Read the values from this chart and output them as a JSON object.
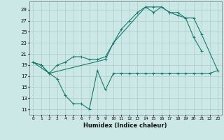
{
  "xlabel": "Humidex (Indice chaleur)",
  "background_color": "#cce8e6",
  "grid_color": "#aaccca",
  "line_color": "#1a7a6e",
  "x_ticks": [
    0,
    1,
    2,
    3,
    4,
    5,
    6,
    7,
    8,
    9,
    10,
    11,
    12,
    13,
    14,
    15,
    16,
    17,
    18,
    19,
    20,
    21,
    22,
    23
  ],
  "y_ticks": [
    11,
    13,
    15,
    17,
    19,
    21,
    23,
    25,
    27,
    29
  ],
  "ylim": [
    10.0,
    30.5
  ],
  "xlim": [
    -0.5,
    23.5
  ],
  "series1_x": [
    0,
    1,
    2,
    3,
    4,
    5,
    6,
    7,
    8,
    9,
    10,
    11,
    12,
    13,
    14,
    15,
    16,
    17,
    18,
    19,
    20,
    21,
    22,
    23
  ],
  "series1_y": [
    19.5,
    19.0,
    17.5,
    16.5,
    13.5,
    12.0,
    12.0,
    11.0,
    18.0,
    14.5,
    17.5,
    17.5,
    17.5,
    17.5,
    17.5,
    17.5,
    17.5,
    17.5,
    17.5,
    17.5,
    17.5,
    17.5,
    17.5,
    18.0
  ],
  "series2_x": [
    0,
    1,
    2,
    3,
    4,
    5,
    6,
    7,
    8,
    9,
    10,
    11,
    12,
    13,
    14,
    15,
    16,
    17,
    18,
    19,
    20,
    21
  ],
  "series2_y": [
    19.5,
    19.0,
    17.5,
    19.0,
    19.5,
    20.5,
    20.5,
    20.0,
    20.0,
    20.5,
    23.0,
    25.5,
    27.0,
    28.5,
    29.5,
    28.5,
    29.5,
    28.5,
    28.5,
    27.5,
    24.0,
    21.5
  ],
  "series3_x": [
    0,
    2,
    9,
    10,
    14,
    15,
    16,
    17,
    18,
    19,
    20,
    21,
    23
  ],
  "series3_y": [
    19.5,
    17.5,
    20.0,
    23.0,
    29.5,
    29.5,
    29.5,
    28.5,
    28.0,
    27.5,
    27.5,
    24.5,
    18.0
  ]
}
